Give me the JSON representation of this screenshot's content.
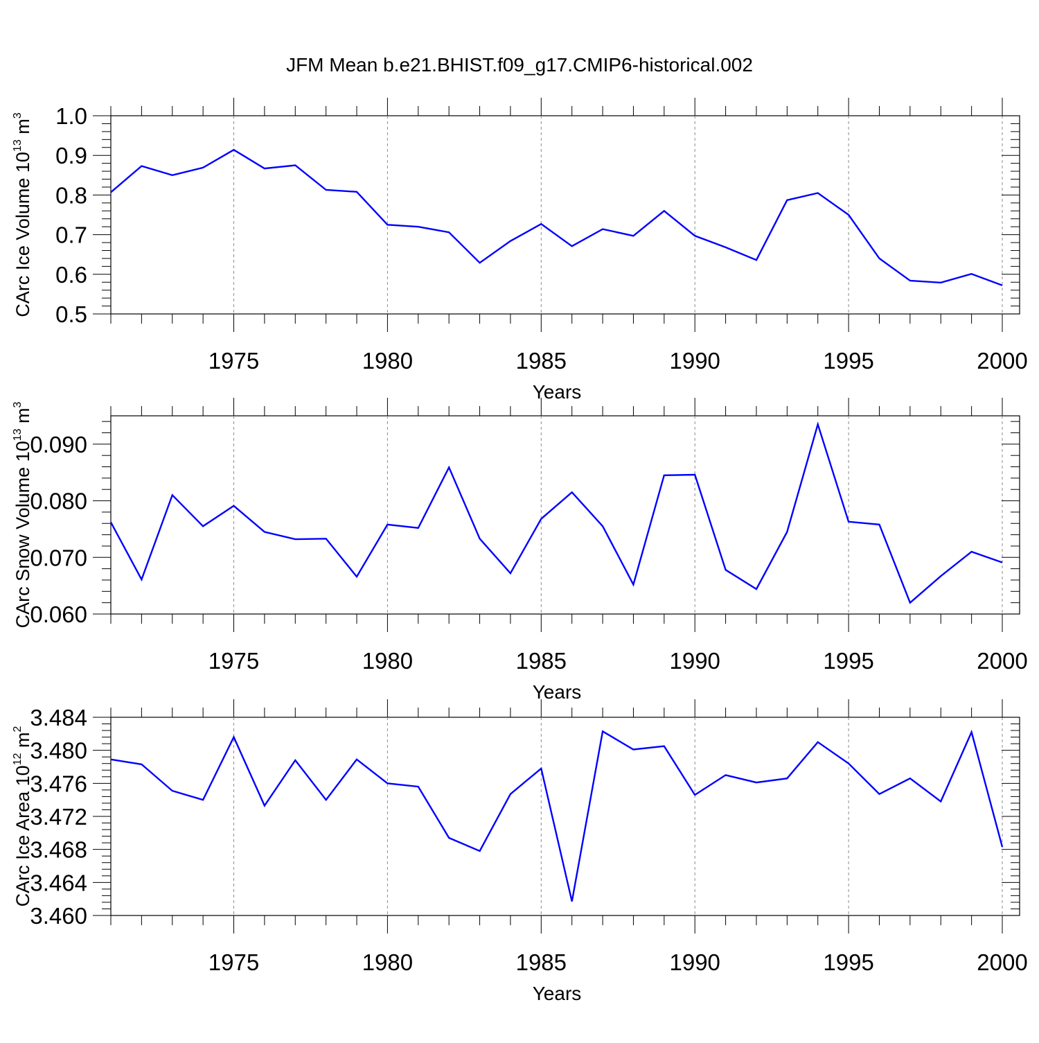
{
  "title": "JFM Mean b.e21.BHIST.f09_g17.CMIP6-historical.002",
  "colors": {
    "line": "#0000ff",
    "axis": "#000000",
    "grid": "#8a8a8a",
    "background": "#ffffff"
  },
  "chart_data": [
    {
      "type": "line",
      "xlabel": "Years",
      "ylabel": "CArc Ice Volume 10",
      "ylabel_sup": "13",
      "ylabel_unit": " m",
      "ylabel_unit_sup": "3",
      "xlim": [
        1971,
        2000
      ],
      "ylim": [
        0.5,
        1.0
      ],
      "yticks": [
        0.5,
        0.6,
        0.7,
        0.8,
        0.9,
        1.0
      ],
      "ytick_labels": [
        "0.5",
        "0.6",
        "0.7",
        "0.8",
        "0.9",
        "1.0"
      ],
      "xticks": [
        1975,
        1980,
        1985,
        1990,
        1995,
        2000
      ],
      "xtick_labels": [
        "1975",
        "1980",
        "1985",
        "1990",
        "1995",
        "2000"
      ],
      "grid": "vertical dashed at major x ticks",
      "series": [
        {
          "x": [
            1971,
            1972,
            1973,
            1974,
            1975,
            1976,
            1977,
            1978,
            1979,
            1980,
            1981,
            1982,
            1983,
            1984,
            1985,
            1986,
            1987,
            1988,
            1989,
            1990,
            1991,
            1992,
            1993,
            1994,
            1995,
            1996,
            1997,
            1998,
            1999,
            2000
          ],
          "values": [
            0.807,
            0.873,
            0.85,
            0.869,
            0.914,
            0.867,
            0.875,
            0.813,
            0.808,
            0.725,
            0.72,
            0.706,
            0.629,
            0.684,
            0.727,
            0.671,
            0.714,
            0.697,
            0.76,
            0.697,
            0.668,
            0.636,
            0.787,
            0.805,
            0.75,
            0.64,
            0.584,
            0.579,
            0.601,
            0.572
          ]
        }
      ]
    },
    {
      "type": "line",
      "xlabel": "Years",
      "ylabel": "CArc Snow Volume 10",
      "ylabel_sup": "13",
      "ylabel_unit": " m",
      "ylabel_unit_sup": "3",
      "xlim": [
        1971,
        2000
      ],
      "ylim": [
        0.06,
        0.095
      ],
      "yticks": [
        0.06,
        0.07,
        0.08,
        0.09
      ],
      "ytick_labels": [
        "0.060",
        "0.070",
        "0.080",
        "0.090"
      ],
      "xticks": [
        1975,
        1980,
        1985,
        1990,
        1995,
        2000
      ],
      "xtick_labels": [
        "1975",
        "1980",
        "1985",
        "1990",
        "1995",
        "2000"
      ],
      "grid": "vertical dashed at major x ticks",
      "series": [
        {
          "x": [
            1971,
            1972,
            1973,
            1974,
            1975,
            1976,
            1977,
            1978,
            1979,
            1980,
            1981,
            1982,
            1983,
            1984,
            1985,
            1986,
            1987,
            1988,
            1989,
            1990,
            1991,
            1992,
            1993,
            1994,
            1995,
            1996,
            1997,
            1998,
            1999,
            2000
          ],
          "values": [
            0.0762,
            0.0661,
            0.081,
            0.0755,
            0.0791,
            0.0745,
            0.0732,
            0.0733,
            0.0666,
            0.0758,
            0.0752,
            0.0859,
            0.0733,
            0.0672,
            0.0768,
            0.0815,
            0.0755,
            0.0652,
            0.0845,
            0.0846,
            0.0678,
            0.0644,
            0.0745,
            0.0935,
            0.0763,
            0.0758,
            0.062,
            0.0667,
            0.071,
            0.0691
          ]
        }
      ]
    },
    {
      "type": "line",
      "xlabel": "Years",
      "ylabel": "CArc Ice Area 10",
      "ylabel_sup": "12",
      "ylabel_unit": " m",
      "ylabel_unit_sup": "2",
      "xlim": [
        1971,
        2000
      ],
      "ylim": [
        3.46,
        3.484
      ],
      "yticks": [
        3.46,
        3.464,
        3.468,
        3.472,
        3.476,
        3.48,
        3.484
      ],
      "ytick_labels": [
        "3.460",
        "3.464",
        "3.468",
        "3.472",
        "3.476",
        "3.480",
        "3.484"
      ],
      "xticks": [
        1975,
        1980,
        1985,
        1990,
        1995,
        2000
      ],
      "xtick_labels": [
        "1975",
        "1980",
        "1985",
        "1990",
        "1995",
        "2000"
      ],
      "grid": "vertical dashed at major x ticks",
      "series": [
        {
          "x": [
            1971,
            1972,
            1973,
            1974,
            1975,
            1976,
            1977,
            1978,
            1979,
            1980,
            1981,
            1982,
            1983,
            1984,
            1985,
            1986,
            1987,
            1988,
            1989,
            1990,
            1991,
            1992,
            1993,
            1994,
            1995,
            1996,
            1997,
            1998,
            1999,
            2000
          ],
          "values": [
            3.4789,
            3.4783,
            3.4751,
            3.474,
            3.4816,
            3.4733,
            3.4788,
            3.474,
            3.4789,
            3.476,
            3.4756,
            3.4694,
            3.4678,
            3.4747,
            3.4778,
            3.4617,
            3.4823,
            3.4801,
            3.4805,
            3.4746,
            3.477,
            3.4761,
            3.4766,
            3.481,
            3.4784,
            3.4747,
            3.4766,
            3.4738,
            3.4822,
            3.4683
          ]
        }
      ]
    }
  ]
}
